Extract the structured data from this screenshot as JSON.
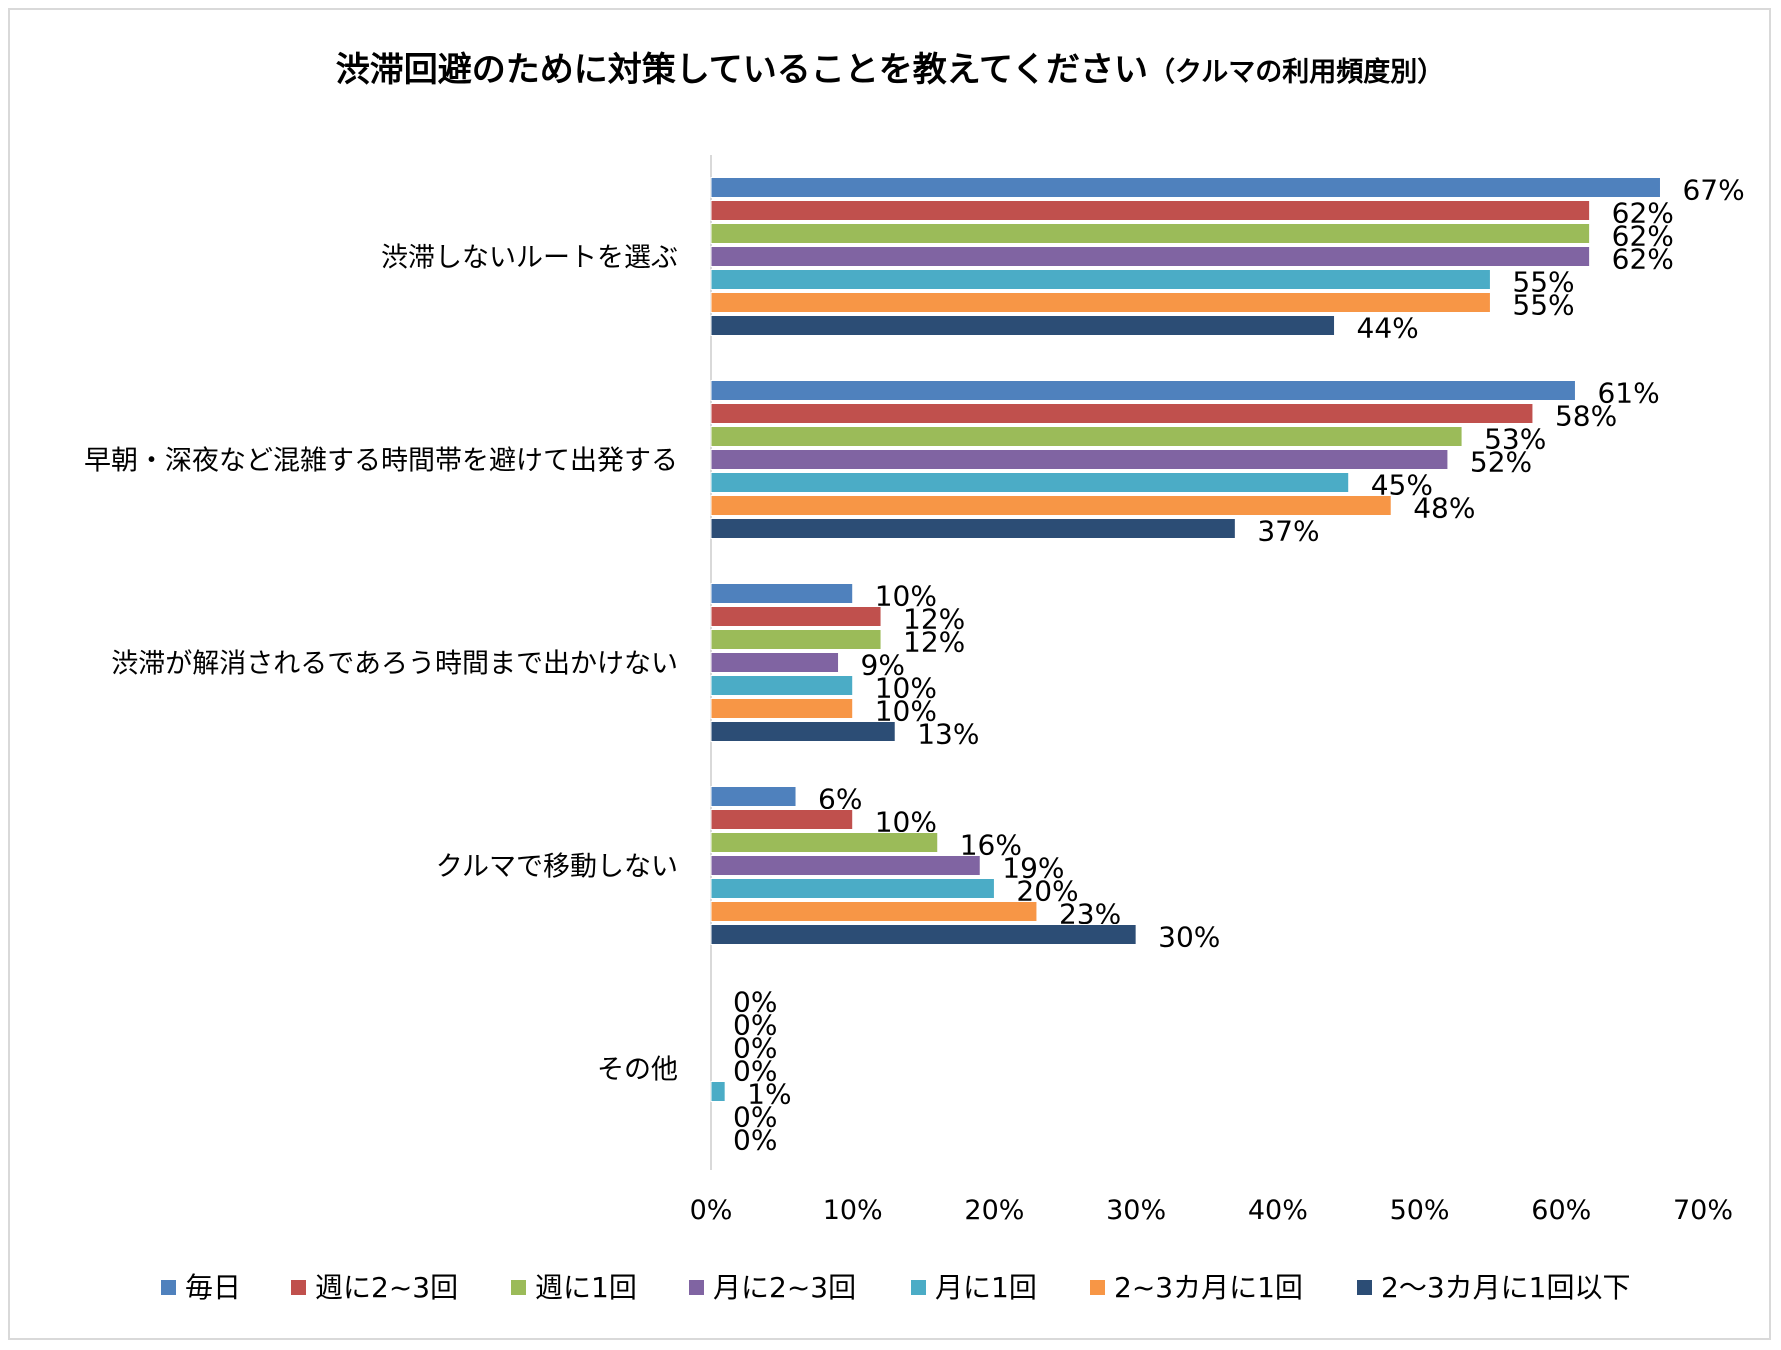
{
  "chart_data": {
    "type": "bar",
    "orientation": "horizontal",
    "title": "渋滞回避のために対策していることを教えてください",
    "title_suffix": "（クルマの利用頻度別）",
    "categories": [
      "渋滞しないルートを選ぶ",
      "早朝・深夜など混雑する時間帯を避けて出発する",
      "渋滞が解消されるであろう時間まで出かけない",
      "クルマで移動しない",
      "その他"
    ],
    "series": [
      {
        "name": "毎日",
        "color": "#4f81bd",
        "values": [
          67,
          61,
          10,
          6,
          0
        ]
      },
      {
        "name": "週に2~3回",
        "color": "#c0504d",
        "values": [
          62,
          58,
          12,
          10,
          0
        ]
      },
      {
        "name": "週に1回",
        "color": "#9bbb59",
        "values": [
          62,
          53,
          12,
          16,
          0
        ]
      },
      {
        "name": "月に2~3回",
        "color": "#8064a2",
        "values": [
          62,
          52,
          9,
          19,
          0
        ]
      },
      {
        "name": "月に1回",
        "color": "#4bacc6",
        "values": [
          55,
          45,
          10,
          20,
          1
        ]
      },
      {
        "name": "2~3カ月に1回",
        "color": "#f79646",
        "values": [
          55,
          48,
          10,
          23,
          0
        ]
      },
      {
        "name": "2～3カ月に1回以下",
        "color": "#2c4d75",
        "values": [
          44,
          37,
          13,
          30,
          0
        ]
      }
    ],
    "data_labels": [
      [
        "67%",
        "61%",
        "10%",
        "6%",
        "0%"
      ],
      [
        "62%",
        "58%",
        "12%",
        "10%",
        "0%"
      ],
      [
        "62%",
        "53%",
        "12%",
        "16%",
        "0%"
      ],
      [
        "62%",
        "52%",
        "9%",
        "19%",
        "0%"
      ],
      [
        "55%",
        "45%",
        "10%",
        "20%",
        "1%"
      ],
      [
        "55%",
        "48%",
        "10%",
        "23%",
        "0%"
      ],
      [
        "44%",
        "37%",
        "13%",
        "30%",
        "0%"
      ]
    ],
    "xlim": [
      0,
      70
    ],
    "x_ticks": [
      "0%",
      "10%",
      "20%",
      "30%",
      "40%",
      "50%",
      "60%",
      "70%"
    ],
    "xlabel": "",
    "ylabel": "",
    "grid": false,
    "legend_position": "bottom"
  }
}
